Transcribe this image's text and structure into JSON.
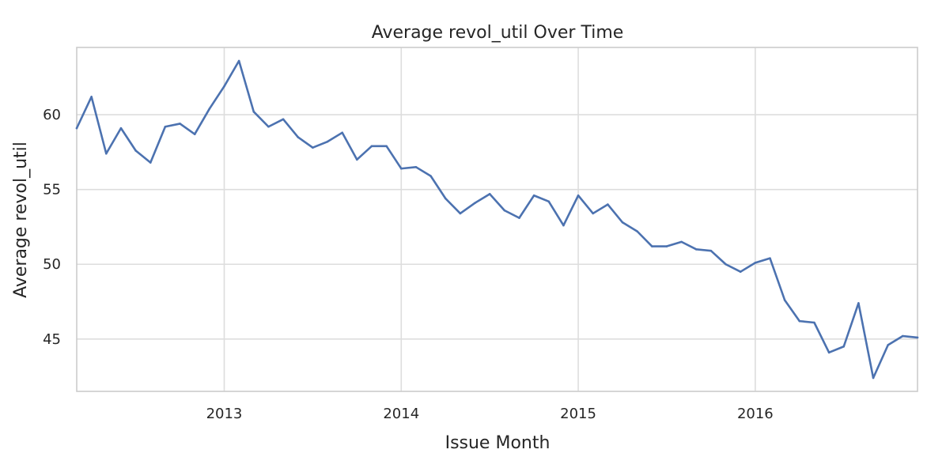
{
  "chart_data": {
    "type": "line",
    "title": "Average revol_util Over Time",
    "xlabel": "Issue Month",
    "ylabel": "Average revol_util",
    "grid": true,
    "xlim": [
      "2012-03",
      "2016-12"
    ],
    "ylim": [
      41.5,
      64.5
    ],
    "x_ticks": [
      "2013-01",
      "2014-01",
      "2015-01",
      "2016-01"
    ],
    "x_tick_labels": [
      "2013",
      "2014",
      "2015",
      "2016"
    ],
    "y_ticks": [
      45,
      50,
      55,
      60
    ],
    "y_tick_labels": [
      "45",
      "50",
      "55",
      "60"
    ],
    "series": [
      {
        "color": "#4c72b0",
        "x": [
          "2012-03",
          "2012-04",
          "2012-05",
          "2012-06",
          "2012-07",
          "2012-08",
          "2012-09",
          "2012-10",
          "2012-11",
          "2012-12",
          "2013-01",
          "2013-02",
          "2013-03",
          "2013-04",
          "2013-05",
          "2013-06",
          "2013-07",
          "2013-08",
          "2013-09",
          "2013-10",
          "2013-11",
          "2013-12",
          "2014-01",
          "2014-02",
          "2014-03",
          "2014-04",
          "2014-05",
          "2014-06",
          "2014-07",
          "2014-08",
          "2014-09",
          "2014-10",
          "2014-11",
          "2014-12",
          "2015-01",
          "2015-02",
          "2015-03",
          "2015-04",
          "2015-05",
          "2015-06",
          "2015-07",
          "2015-08",
          "2015-09",
          "2015-10",
          "2015-11",
          "2015-12",
          "2016-01",
          "2016-02",
          "2016-03",
          "2016-04",
          "2016-05",
          "2016-06",
          "2016-07",
          "2016-08",
          "2016-09",
          "2016-10",
          "2016-11",
          "2016-12"
        ],
        "values": [
          59.1,
          61.2,
          57.4,
          59.1,
          57.6,
          56.8,
          59.2,
          59.4,
          58.7,
          60.4,
          61.9,
          63.6,
          60.2,
          59.2,
          59.7,
          58.5,
          57.8,
          58.2,
          58.8,
          57.0,
          57.9,
          57.9,
          56.4,
          56.5,
          55.9,
          54.4,
          53.4,
          54.1,
          54.7,
          53.6,
          53.1,
          54.6,
          54.2,
          52.6,
          54.6,
          53.4,
          54.0,
          52.8,
          52.2,
          51.2,
          51.2,
          51.5,
          51.0,
          50.9,
          50.0,
          49.5,
          50.1,
          50.4,
          47.6,
          46.2,
          46.1,
          44.1,
          44.5,
          47.4,
          42.4,
          44.6,
          45.2,
          45.1
        ]
      }
    ]
  }
}
